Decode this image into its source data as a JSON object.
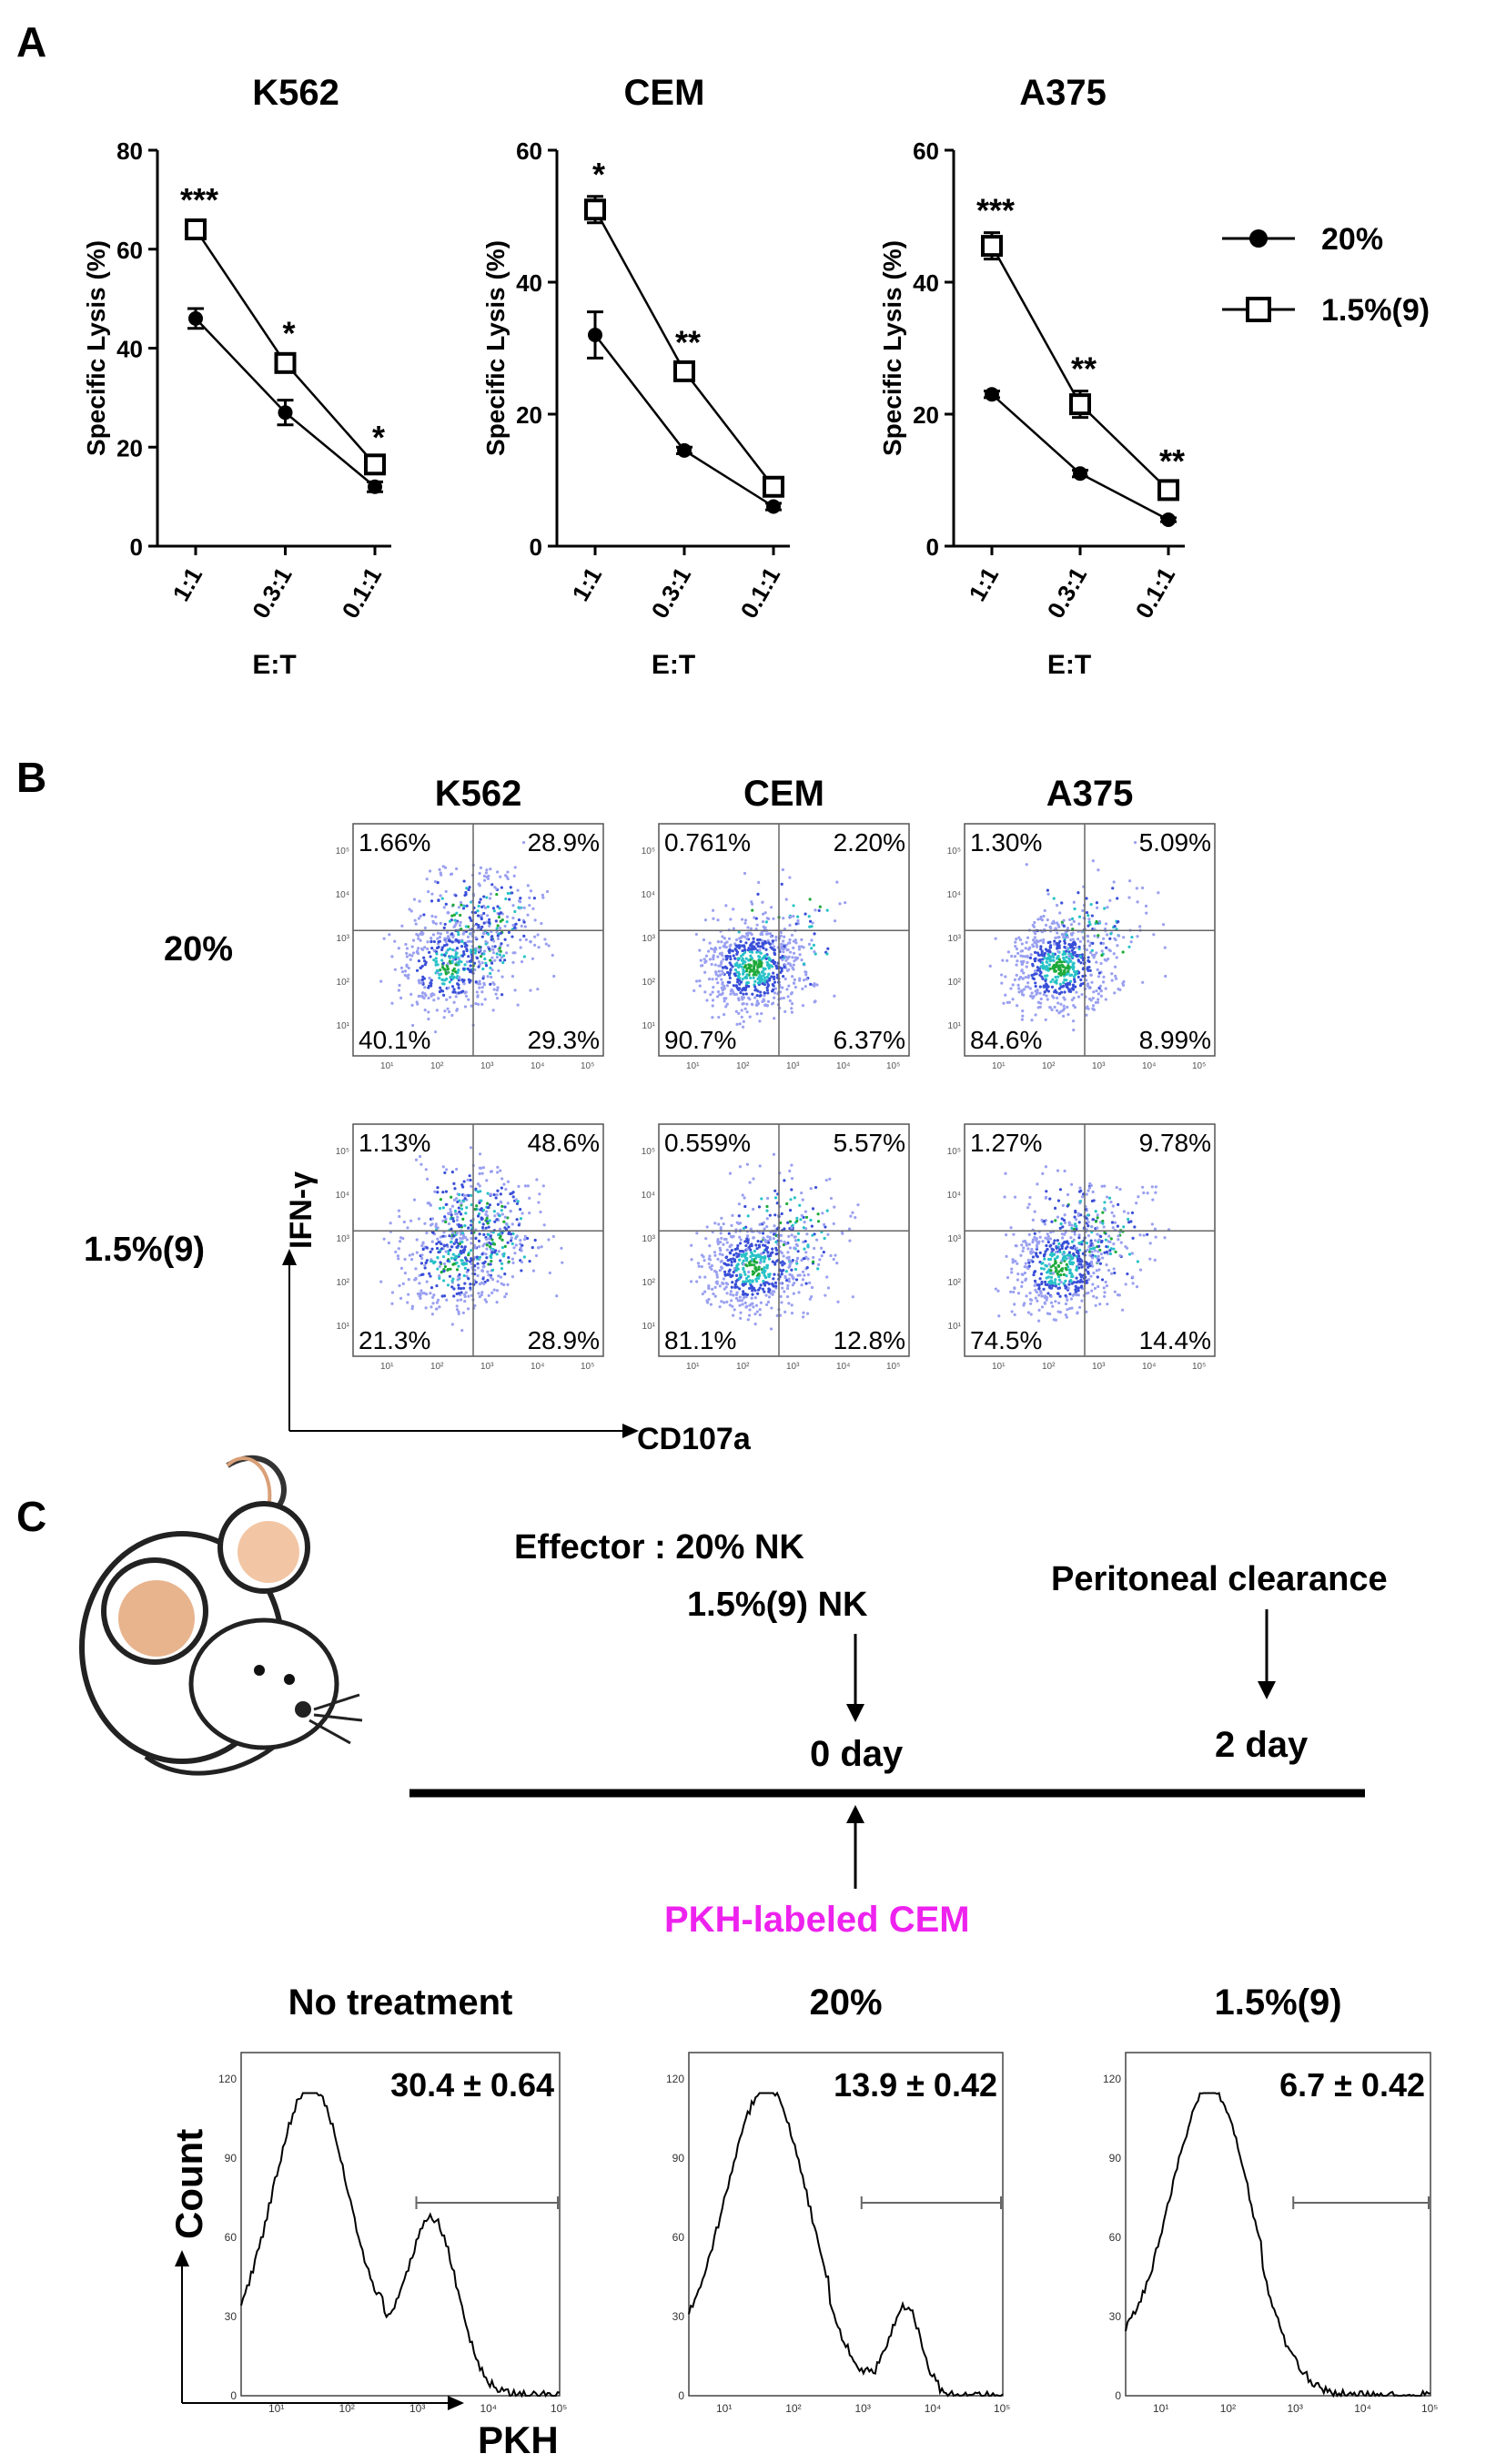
{
  "panel_letters": [
    "A",
    "B",
    "C"
  ],
  "legend": {
    "items": [
      "20%",
      "1.5%(9)"
    ]
  },
  "panelA": {
    "ylabel": "Specific Lysis (%)",
    "xlabel": "E:T",
    "categories": [
      "1:1",
      "0.3:1",
      "0.1:1"
    ]
  },
  "panelB": {
    "columns": [
      "K562",
      "CEM",
      "A375"
    ],
    "rows": [
      "20%",
      "1.5%(9)"
    ],
    "axis_y": "IFN-γ",
    "axis_x": "CD107a",
    "tick_labels": [
      "10⁰",
      "10¹",
      "10²",
      "10³",
      "10⁴",
      "10⁵"
    ]
  },
  "panelC": {
    "effector_label": "Effector : 20% NK",
    "effector_label2": "1.5%(9) NK",
    "clearance_label": "Peritoneal clearance",
    "day0": "0 day",
    "day2": "2 day",
    "target_label": "PKH-labeled CEM",
    "target_color": "#ee22ee",
    "histograms": [
      {
        "title": "No treatment",
        "value": "30.4 ± 0.64"
      },
      {
        "title": "20%",
        "value": "13.9 ± 0.42"
      },
      {
        "title": "1.5%(9)",
        "value": "6.7 ± 0.42"
      }
    ],
    "hist_yticks": [
      "0",
      "30",
      "60",
      "90",
      "120"
    ],
    "hist_xticks": [
      "10¹",
      "10²",
      "10³",
      "10⁴",
      "10⁵"
    ],
    "count_label": "Count",
    "pkh_label": "PKH"
  },
  "chart_data": [
    {
      "type": "line",
      "title": "K562",
      "categories": [
        "1:1",
        "0.3:1",
        "0.1:1"
      ],
      "xlabel": "E:T",
      "ylabel": "Specific Lysis (%)",
      "ylim": [
        0,
        80
      ],
      "yticks": [
        0,
        20,
        40,
        60,
        80
      ],
      "series": [
        {
          "name": "20%",
          "values": [
            46,
            27,
            12
          ],
          "errors": [
            2,
            2.5,
            1
          ]
        },
        {
          "name": "1.5%(9)",
          "values": [
            64,
            37,
            16.5
          ],
          "errors": [
            1.5,
            1.5,
            1
          ]
        }
      ],
      "annotations": [
        "***",
        "*",
        "*"
      ]
    },
    {
      "type": "line",
      "title": "CEM",
      "categories": [
        "1:1",
        "0.3:1",
        "0.1:1"
      ],
      "xlabel": "E:T",
      "ylabel": "Specific Lysis (%)",
      "ylim": [
        0,
        60
      ],
      "yticks": [
        0,
        20,
        40,
        60
      ],
      "series": [
        {
          "name": "20%",
          "values": [
            32,
            14.5,
            6
          ],
          "errors": [
            3.5,
            0.5,
            0.5
          ]
        },
        {
          "name": "1.5%(9)",
          "values": [
            51,
            26.5,
            9
          ],
          "errors": [
            2,
            1,
            1
          ]
        }
      ],
      "annotations": [
        "*",
        "**",
        ""
      ]
    },
    {
      "type": "line",
      "title": "A375",
      "categories": [
        "1:1",
        "0.3:1",
        "0.1:1"
      ],
      "xlabel": "E:T",
      "ylabel": "Specific Lysis (%)",
      "ylim": [
        0,
        60
      ],
      "yticks": [
        0,
        20,
        40,
        60
      ],
      "series": [
        {
          "name": "20%",
          "values": [
            23,
            11,
            4
          ],
          "errors": [
            0.5,
            0.5,
            0.3
          ]
        },
        {
          "name": "1.5%(9)",
          "values": [
            45.5,
            21.5,
            8.5
          ],
          "errors": [
            2,
            2,
            1
          ]
        }
      ],
      "annotations": [
        "***",
        "**",
        "**"
      ]
    },
    {
      "type": "scatter",
      "title": "IFN-γ vs CD107a flow cytometry quadrants",
      "xlabel": "CD107a",
      "ylabel": "IFN-γ",
      "quadrant_order": [
        "upper-left",
        "upper-right",
        "lower-left",
        "lower-right"
      ],
      "plots": [
        {
          "row": "20%",
          "col": "K562",
          "quadrants": [
            "1.66%",
            "28.9%",
            "40.1%",
            "29.3%"
          ]
        },
        {
          "row": "20%",
          "col": "CEM",
          "quadrants": [
            "0.761%",
            "2.20%",
            "90.7%",
            "6.37%"
          ]
        },
        {
          "row": "20%",
          "col": "A375",
          "quadrants": [
            "1.30%",
            "5.09%",
            "84.6%",
            "8.99%"
          ]
        },
        {
          "row": "1.5%(9)",
          "col": "K562",
          "quadrants": [
            "1.13%",
            "48.6%",
            "21.3%",
            "28.9%"
          ]
        },
        {
          "row": "1.5%(9)",
          "col": "CEM",
          "quadrants": [
            "0.559%",
            "5.57%",
            "81.1%",
            "12.8%"
          ]
        },
        {
          "row": "1.5%(9)",
          "col": "A375",
          "quadrants": [
            "1.27%",
            "9.78%",
            "74.5%",
            "14.4%"
          ]
        }
      ]
    },
    {
      "type": "area",
      "title": "PKH histograms",
      "xlabel": "PKH",
      "ylabel": "Count",
      "ylim": [
        0,
        130
      ],
      "histograms": [
        {
          "name": "No treatment",
          "gated_percent": 30.4,
          "sd": 0.64
        },
        {
          "name": "20%",
          "gated_percent": 13.9,
          "sd": 0.42
        },
        {
          "name": "1.5%(9)",
          "gated_percent": 6.7,
          "sd": 0.42
        }
      ]
    }
  ]
}
